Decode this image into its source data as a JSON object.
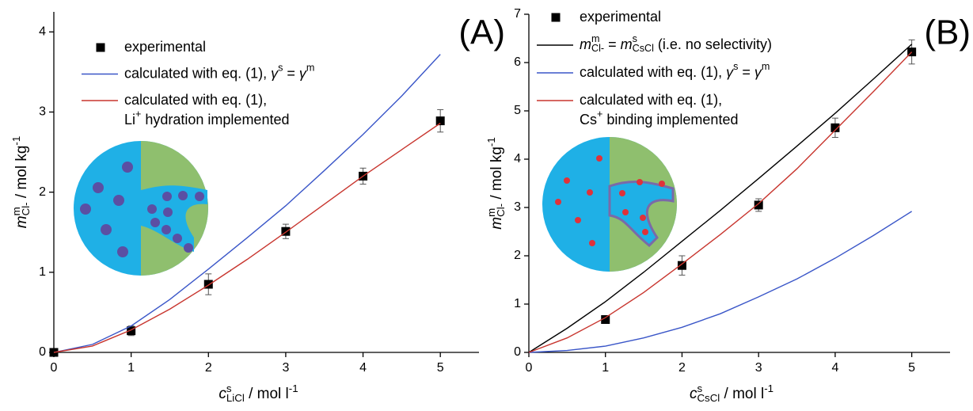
{
  "chart_data": [
    {
      "type": "line",
      "panel_label": "(A)",
      "x_label": [
        {
          "i": "c"
        },
        {
          "sup": "s"
        },
        {
          "sub": "LiCl"
        },
        " / mol l",
        {
          "sup": "-1"
        }
      ],
      "y_label": [
        {
          "i": "m"
        },
        {
          "sup": "m"
        },
        {
          "sub": "Cl-"
        },
        " / mol kg",
        {
          "sup": "-1"
        }
      ],
      "xlim": [
        0,
        5.5
      ],
      "xticks": [
        0,
        1,
        2,
        3,
        4,
        5
      ],
      "ylim": [
        0,
        4.25
      ],
      "yticks": [
        0,
        1,
        2,
        3,
        4
      ],
      "series": [
        {
          "name": [
            [
              "experimental"
            ]
          ],
          "color": "#000000",
          "style": "markers",
          "x": [
            0,
            1,
            2,
            3,
            4,
            5
          ],
          "values": [
            0,
            0.27,
            0.85,
            1.51,
            2.2,
            2.89
          ],
          "errors": [
            0.02,
            0.06,
            0.13,
            0.09,
            0.1,
            0.14
          ]
        },
        {
          "name": [
            [
              "calculated with eq. (1), ",
              {
                "i": "γ"
              },
              {
                "sup": "s"
              },
              " = ",
              {
                "i": "γ"
              },
              {
                "sup": "m"
              }
            ]
          ],
          "color": "#3a56c8",
          "style": "line",
          "x": [
            0,
            0.5,
            1,
            1.5,
            2,
            2.5,
            3,
            3.5,
            4,
            4.5,
            5
          ],
          "values": [
            0,
            0.1,
            0.33,
            0.66,
            1.04,
            1.43,
            1.83,
            2.27,
            2.72,
            3.2,
            3.72
          ]
        },
        {
          "name": [
            [
              "calculated with eq. (1),"
            ],
            [
              "Li",
              {
                "sup": "+"
              },
              " hydration implemented"
            ]
          ],
          "color": "#c8352e",
          "style": "line",
          "x": [
            0,
            0.5,
            1,
            1.5,
            2,
            2.5,
            3,
            3.5,
            4,
            4.5,
            5
          ],
          "values": [
            0,
            0.08,
            0.28,
            0.54,
            0.84,
            1.16,
            1.5,
            1.85,
            2.2,
            2.53,
            2.86
          ]
        }
      ]
    },
    {
      "type": "line",
      "panel_label": "(B)",
      "x_label": [
        {
          "i": "c"
        },
        {
          "sup": "s"
        },
        {
          "sub": "CsCl"
        },
        " / mol l",
        {
          "sup": "-1"
        }
      ],
      "y_label": [
        {
          "i": "m"
        },
        {
          "sup": "m"
        },
        {
          "sub": "Cl-"
        },
        " / mol kg",
        {
          "sup": "-1"
        }
      ],
      "xlim": [
        0,
        5.5
      ],
      "xticks": [
        0,
        1,
        2,
        3,
        4,
        5
      ],
      "ylim": [
        0,
        7
      ],
      "yticks": [
        0,
        1,
        2,
        3,
        4,
        5,
        6,
        7
      ],
      "series": [
        {
          "name": [
            [
              "experimental"
            ]
          ],
          "color": "#000000",
          "style": "markers",
          "x": [
            1,
            2,
            3,
            4,
            5
          ],
          "values": [
            0.68,
            1.8,
            3.05,
            4.65,
            6.22
          ],
          "errors": [
            0.08,
            0.2,
            0.13,
            0.2,
            0.25
          ]
        },
        {
          "name": [
            [
              {
                "i": "m"
              },
              {
                "sup": "m"
              },
              {
                "sub": "Cl-"
              },
              " = ",
              {
                "i": "m"
              },
              {
                "sup": "s"
              },
              {
                "sub": "CsCl"
              },
              " (i.e. no selectivity)"
            ]
          ],
          "color": "#000000",
          "style": "line",
          "x": [
            0,
            0.5,
            1,
            1.5,
            2,
            2.5,
            3,
            3.5,
            4,
            4.5,
            5
          ],
          "values": [
            0,
            0.5,
            1.05,
            1.66,
            2.3,
            2.94,
            3.6,
            4.27,
            4.95,
            5.66,
            6.38
          ]
        },
        {
          "name": [
            [
              "calculated with eq. (1), ",
              {
                "i": "γ"
              },
              {
                "sup": "s"
              },
              " = ",
              {
                "i": "γ"
              },
              {
                "sup": "m"
              }
            ]
          ],
          "color": "#3a56c8",
          "style": "line",
          "x": [
            0,
            0.5,
            1,
            1.5,
            2,
            2.5,
            3,
            3.5,
            4,
            4.5,
            5
          ],
          "values": [
            0,
            0.04,
            0.13,
            0.3,
            0.52,
            0.8,
            1.15,
            1.52,
            1.95,
            2.42,
            2.92
          ]
        },
        {
          "name": [
            [
              "calculated with eq. (1),"
            ],
            [
              "Cs",
              {
                "sup": "+"
              },
              " binding implemented"
            ]
          ],
          "color": "#c8352e",
          "style": "line",
          "x": [
            0,
            0.5,
            1,
            1.5,
            2,
            2.5,
            3,
            3.5,
            4,
            4.5,
            5
          ],
          "values": [
            0,
            0.3,
            0.72,
            1.24,
            1.83,
            2.44,
            3.08,
            3.8,
            4.6,
            5.4,
            6.22
          ]
        }
      ]
    }
  ]
}
